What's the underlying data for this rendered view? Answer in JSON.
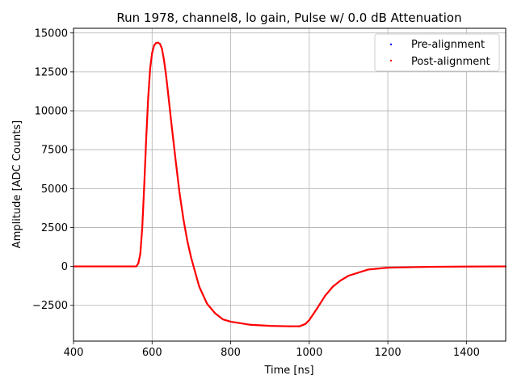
{
  "chart_data": {
    "type": "scatter",
    "title": "Run 1978, channel8, lo gain, Pulse w/ 0.0 dB Attenuation",
    "xlabel": "Time [ns]",
    "ylabel": "Amplitude [ADC Counts]",
    "xlim": [
      400,
      1500
    ],
    "ylim": [
      -4800,
      15300
    ],
    "xticks": [
      400,
      600,
      800,
      1000,
      1200,
      1400
    ],
    "xtick_labels": [
      "400",
      "600",
      "800",
      "1000",
      "1200",
      "1400"
    ],
    "yticks": [
      -2500,
      0,
      2500,
      5000,
      7500,
      10000,
      12500,
      15000
    ],
    "ytick_labels": [
      "−2500",
      "0",
      "2500",
      "5000",
      "7500",
      "10000",
      "12500",
      "15000"
    ],
    "grid": true,
    "legend_position": "top-right",
    "series": [
      {
        "name": "Pre-alignment",
        "color": "#0000ff",
        "x": [
          400,
          560,
          565,
          570,
          575,
          580,
          585,
          590,
          595,
          600,
          605,
          610,
          615,
          620,
          625,
          630,
          635,
          640,
          650,
          660,
          670,
          680,
          690,
          700,
          720,
          740,
          760,
          780,
          800,
          850,
          900,
          950,
          975,
          990,
          1000,
          1020,
          1040,
          1060,
          1080,
          1100,
          1150,
          1200,
          1300,
          1400,
          1500
        ],
        "y": [
          0,
          0,
          200,
          800,
          2500,
          5200,
          8200,
          10800,
          12700,
          13700,
          14200,
          14350,
          14380,
          14300,
          14000,
          13300,
          12400,
          11300,
          9000,
          6800,
          4700,
          3000,
          1600,
          500,
          -1300,
          -2400,
          -3000,
          -3400,
          -3550,
          -3750,
          -3820,
          -3850,
          -3850,
          -3700,
          -3450,
          -2700,
          -1900,
          -1300,
          -900,
          -600,
          -200,
          -80,
          -30,
          -10,
          0
        ]
      },
      {
        "name": "Post-alignment",
        "color": "#ff0000",
        "x": [
          400,
          560,
          565,
          570,
          575,
          580,
          585,
          590,
          595,
          600,
          605,
          610,
          615,
          620,
          625,
          630,
          635,
          640,
          650,
          660,
          670,
          680,
          690,
          700,
          720,
          740,
          760,
          780,
          800,
          850,
          900,
          950,
          975,
          990,
          1000,
          1020,
          1040,
          1060,
          1080,
          1100,
          1150,
          1200,
          1300,
          1400,
          1500
        ],
        "y": [
          0,
          0,
          200,
          800,
          2500,
          5200,
          8200,
          10800,
          12700,
          13700,
          14200,
          14350,
          14380,
          14300,
          14000,
          13300,
          12400,
          11300,
          9000,
          6800,
          4700,
          3000,
          1600,
          500,
          -1300,
          -2400,
          -3000,
          -3400,
          -3550,
          -3750,
          -3820,
          -3850,
          -3850,
          -3700,
          -3450,
          -2700,
          -1900,
          -1300,
          -900,
          -600,
          -200,
          -80,
          -30,
          -10,
          0
        ]
      }
    ]
  }
}
